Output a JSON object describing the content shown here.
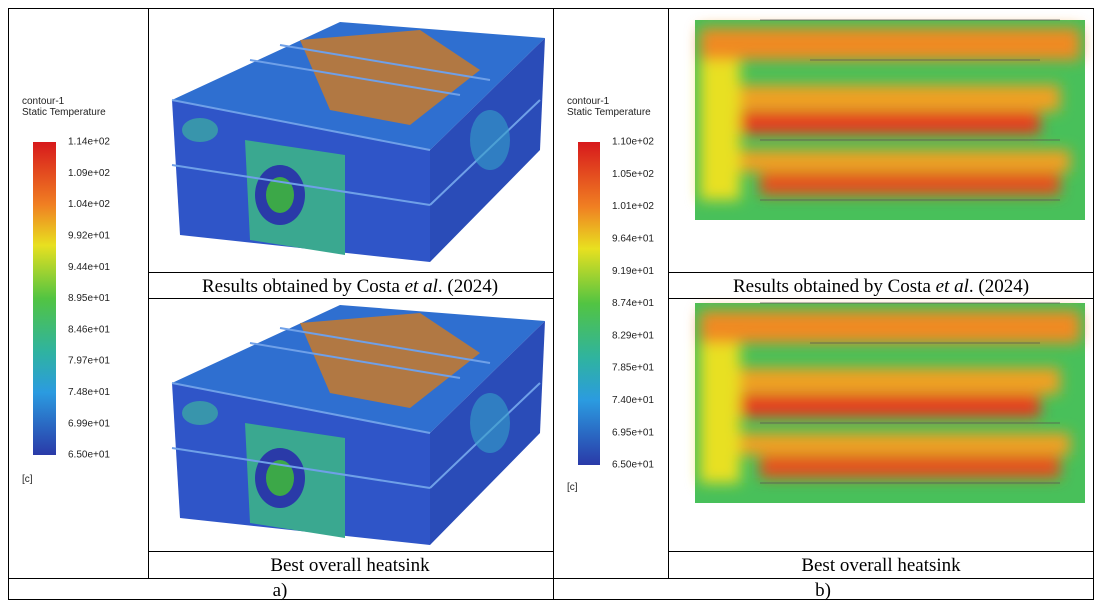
{
  "panel_a": {
    "legend": {
      "name": "contour-1",
      "quantity": "Static Temperature",
      "unit": "[c]",
      "levels": [
        "1.14e+02",
        "1.09e+02",
        "1.04e+02",
        "9.92e+01",
        "9.44e+01",
        "8.95e+01",
        "8.46e+01",
        "7.97e+01",
        "7.48e+01",
        "6.99e+01",
        "6.50e+01"
      ]
    },
    "top_caption": [
      "Results obtained by Costa ",
      "et al",
      ". (2024)"
    ],
    "bottom_caption": "Best overall heatsink",
    "label": "a)"
  },
  "panel_b": {
    "legend": {
      "name": "contour-1",
      "quantity": "Static Temperature",
      "unit": "[c]",
      "levels": [
        "1.10e+02",
        "1.05e+02",
        "1.01e+02",
        "9.64e+01",
        "9.19e+01",
        "8.74e+01",
        "8.29e+01",
        "7.85e+01",
        "7.40e+01",
        "6.95e+01",
        "6.50e+01"
      ]
    },
    "top_caption": [
      "Results obtained by Costa ",
      "et al",
      ". (2024)"
    ],
    "bottom_caption": "Best overall heatsink",
    "label": "b)"
  }
}
